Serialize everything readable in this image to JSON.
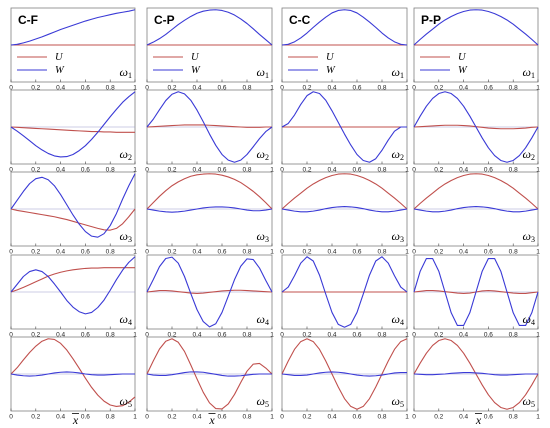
{
  "colors": {
    "U": "#c0504d",
    "W": "#3a3ad6",
    "zero": "#9999cc",
    "frame": "#7f7f7f"
  },
  "x_ticks": [
    "0",
    "0.2",
    "0.4",
    "0.6",
    "0.8",
    "1"
  ],
  "x_label": "x",
  "chart_data": {
    "type": "line",
    "layout": "grid of 5 rows (mode) by 4 columns (boundary condition)",
    "xlim": [
      0,
      1
    ],
    "ylim": [
      -1.05,
      1.05
    ],
    "columns": [
      "C-F",
      "C-P",
      "C-C",
      "P-P"
    ],
    "rows": [
      {
        "omega": "ω",
        "sub": "1"
      },
      {
        "omega": "ω",
        "sub": "2"
      },
      {
        "omega": "ω",
        "sub": "3"
      },
      {
        "omega": "ω",
        "sub": "4"
      },
      {
        "omega": "ω",
        "sub": "5"
      }
    ],
    "legend": {
      "placement": "lower-left of first-row panels",
      "entries": [
        "U",
        "W"
      ]
    },
    "x": [
      0,
      0.05,
      0.1,
      0.15,
      0.2,
      0.25,
      0.3,
      0.35,
      0.4,
      0.45,
      0.5,
      0.55,
      0.6,
      0.65,
      0.7,
      0.75,
      0.8,
      0.85,
      0.9,
      0.95,
      1
    ],
    "panels": [
      [
        {
          "U": [
            0,
            0,
            0,
            0,
            0,
            0,
            0,
            0,
            0,
            0,
            0,
            0,
            0,
            0,
            0,
            0,
            0,
            0,
            0,
            0,
            0
          ],
          "W": [
            0,
            0.02,
            0.06,
            0.11,
            0.17,
            0.23,
            0.3,
            0.37,
            0.44,
            0.5,
            0.56,
            0.62,
            0.68,
            0.73,
            0.78,
            0.82,
            0.86,
            0.9,
            0.93,
            0.96,
            1
          ]
        },
        {
          "U": [
            0,
            0,
            0,
            0,
            0,
            0,
            0,
            0,
            0,
            0,
            0,
            0,
            0,
            0,
            0,
            0,
            0,
            0,
            0,
            0,
            0
          ],
          "W": [
            0,
            0.08,
            0.18,
            0.3,
            0.44,
            0.58,
            0.7,
            0.81,
            0.9,
            0.96,
            0.99,
            1,
            0.98,
            0.93,
            0.85,
            0.74,
            0.61,
            0.46,
            0.3,
            0.15,
            0
          ]
        },
        {
          "U": [
            0,
            0,
            0,
            0,
            0,
            0,
            0,
            0,
            0,
            0,
            0,
            0,
            0,
            0,
            0,
            0,
            0,
            0,
            0,
            0,
            0
          ],
          "W": [
            0,
            0.02,
            0.09,
            0.2,
            0.34,
            0.5,
            0.65,
            0.79,
            0.91,
            0.98,
            1,
            0.98,
            0.91,
            0.79,
            0.65,
            0.5,
            0.34,
            0.2,
            0.09,
            0.02,
            0
          ]
        },
        {
          "U": [
            0,
            0,
            0,
            0,
            0,
            0,
            0,
            0,
            0,
            0,
            0,
            0,
            0,
            0,
            0,
            0,
            0,
            0,
            0,
            0,
            0
          ],
          "W": [
            0,
            0.16,
            0.31,
            0.45,
            0.59,
            0.71,
            0.81,
            0.89,
            0.95,
            0.99,
            1,
            0.99,
            0.95,
            0.89,
            0.81,
            0.71,
            0.59,
            0.45,
            0.31,
            0.16,
            0
          ]
        }
      ],
      [
        {
          "U": [
            0,
            -0.01,
            -0.02,
            -0.03,
            -0.04,
            -0.05,
            -0.06,
            -0.07,
            -0.08,
            -0.09,
            -0.1,
            -0.11,
            -0.12,
            -0.13,
            -0.13,
            -0.14,
            -0.14,
            -0.15,
            -0.15,
            -0.15,
            -0.15
          ],
          "W": [
            0,
            -0.12,
            -0.25,
            -0.39,
            -0.53,
            -0.65,
            -0.75,
            -0.82,
            -0.85,
            -0.84,
            -0.78,
            -0.67,
            -0.53,
            -0.35,
            -0.15,
            0.07,
            0.29,
            0.5,
            0.7,
            0.86,
            1
          ]
        },
        {
          "U": [
            0,
            0.01,
            0.02,
            0.03,
            0.04,
            0.05,
            0.06,
            0.06,
            0.06,
            0.06,
            0.05,
            0.04,
            0.03,
            0.02,
            0.01,
            0,
            -0.01,
            -0.01,
            -0.01,
            0,
            0
          ],
          "W": [
            0,
            0.22,
            0.49,
            0.75,
            0.93,
            1,
            0.94,
            0.76,
            0.48,
            0.15,
            -0.2,
            -0.52,
            -0.78,
            -0.94,
            -1,
            -0.94,
            -0.78,
            -0.56,
            -0.33,
            -0.13,
            0
          ]
        },
        {
          "U": [
            0,
            0,
            0,
            0,
            0,
            0,
            0,
            0,
            0,
            0,
            0,
            0,
            0,
            0,
            0,
            0,
            0,
            0,
            0,
            0,
            0
          ],
          "W": [
            0,
            0.1,
            0.34,
            0.64,
            0.89,
            1,
            0.95,
            0.76,
            0.46,
            0.13,
            -0.2,
            -0.51,
            -0.78,
            -0.95,
            -1,
            -0.9,
            -0.66,
            -0.37,
            -0.12,
            0,
            0
          ]
        },
        {
          "U": [
            0,
            0.01,
            0.02,
            0.03,
            0.04,
            0.05,
            0.05,
            0.05,
            0.04,
            0.03,
            0.01,
            -0.01,
            -0.03,
            -0.04,
            -0.05,
            -0.05,
            -0.05,
            -0.04,
            -0.03,
            -0.01,
            0
          ],
          "W": [
            0,
            0.31,
            0.59,
            0.81,
            0.95,
            1,
            0.95,
            0.81,
            0.59,
            0.31,
            0,
            -0.31,
            -0.59,
            -0.81,
            -0.95,
            -1,
            -0.95,
            -0.81,
            -0.59,
            -0.31,
            0
          ]
        }
      ],
      [
        {
          "U": [
            0,
            -0.04,
            -0.07,
            -0.1,
            -0.13,
            -0.16,
            -0.19,
            -0.22,
            -0.26,
            -0.3,
            -0.35,
            -0.4,
            -0.45,
            -0.5,
            -0.55,
            -0.59,
            -0.6,
            -0.55,
            -0.42,
            -0.22,
            0
          ],
          "W": [
            0,
            0.25,
            0.5,
            0.72,
            0.86,
            0.9,
            0.83,
            0.66,
            0.41,
            0.12,
            -0.17,
            -0.43,
            -0.64,
            -0.77,
            -0.8,
            -0.7,
            -0.47,
            -0.13,
            0.28,
            0.66,
            1
          ]
        },
        {
          "U": [
            0,
            0.18,
            0.36,
            0.52,
            0.66,
            0.77,
            0.86,
            0.93,
            0.97,
            0.99,
            1,
            0.99,
            0.96,
            0.91,
            0.84,
            0.75,
            0.63,
            0.5,
            0.35,
            0.18,
            0
          ],
          "W": [
            0,
            -0.03,
            -0.06,
            -0.08,
            -0.09,
            -0.08,
            -0.06,
            -0.03,
            0,
            0.03,
            0.05,
            0.06,
            0.06,
            0.05,
            0.03,
            0,
            -0.03,
            -0.05,
            -0.05,
            -0.03,
            0
          ]
        },
        {
          "U": [
            0,
            0.16,
            0.31,
            0.45,
            0.59,
            0.71,
            0.81,
            0.89,
            0.95,
            0.99,
            1,
            0.99,
            0.95,
            0.89,
            0.81,
            0.71,
            0.59,
            0.45,
            0.31,
            0.16,
            0
          ],
          "W": [
            0,
            -0.03,
            -0.06,
            -0.08,
            -0.08,
            -0.06,
            -0.03,
            0.01,
            0.04,
            0.06,
            0.07,
            0.06,
            0.04,
            0.01,
            -0.03,
            -0.06,
            -0.08,
            -0.08,
            -0.06,
            -0.03,
            0
          ]
        },
        {
          "U": [
            0,
            0.16,
            0.31,
            0.45,
            0.59,
            0.71,
            0.81,
            0.89,
            0.95,
            0.99,
            1,
            0.99,
            0.95,
            0.89,
            0.81,
            0.71,
            0.59,
            0.45,
            0.31,
            0.16,
            0
          ],
          "W": [
            0,
            -0.03,
            -0.06,
            -0.08,
            -0.08,
            -0.06,
            -0.03,
            0.01,
            0.04,
            0.06,
            0.07,
            0.06,
            0.04,
            0.01,
            -0.03,
            -0.06,
            -0.08,
            -0.08,
            -0.06,
            -0.03,
            0
          ]
        }
      ],
      [
        {
          "U": [
            0,
            0.06,
            0.13,
            0.21,
            0.29,
            0.37,
            0.45,
            0.51,
            0.56,
            0.6,
            0.63,
            0.65,
            0.67,
            0.68,
            0.68,
            0.69,
            0.69,
            0.69,
            0.69,
            0.69,
            0.69
          ],
          "W": [
            0,
            0.22,
            0.44,
            0.58,
            0.63,
            0.58,
            0.44,
            0.23,
            0,
            -0.24,
            -0.43,
            -0.56,
            -0.62,
            -0.58,
            -0.44,
            -0.23,
            0.05,
            0.35,
            0.62,
            0.84,
            1
          ]
        },
        {
          "U": [
            0,
            0.02,
            0.04,
            0.04,
            0.03,
            0.01,
            -0.01,
            -0.03,
            -0.04,
            -0.03,
            -0.01,
            0.01,
            0.03,
            0.04,
            0.05,
            0.05,
            0.04,
            0.03,
            0.02,
            0.01,
            0
          ],
          "W": [
            0,
            0.35,
            0.72,
            0.95,
            0.99,
            0.82,
            0.44,
            -0.04,
            -0.5,
            -0.84,
            -0.99,
            -0.9,
            -0.58,
            -0.12,
            0.35,
            0.73,
            0.94,
            0.92,
            0.68,
            0.33,
            0
          ]
        },
        {
          "U": [
            0,
            0,
            0,
            0,
            0,
            0,
            0,
            0,
            0,
            0,
            0,
            0,
            0,
            0,
            0,
            0,
            0,
            0,
            0,
            0,
            0
          ],
          "W": [
            0,
            0.14,
            0.46,
            0.82,
            1,
            0.88,
            0.48,
            -0.06,
            -0.58,
            -0.92,
            -1,
            -0.92,
            -0.58,
            -0.06,
            0.48,
            0.88,
            1,
            0.82,
            0.46,
            0.14,
            0
          ]
        },
        {
          "U": [
            0,
            0.02,
            0.04,
            0.04,
            0.03,
            0.01,
            -0.01,
            -0.03,
            -0.04,
            -0.03,
            0,
            0.03,
            0.04,
            0.03,
            0.01,
            -0.01,
            -0.03,
            -0.04,
            -0.04,
            -0.02,
            0
          ],
          "W": [
            0,
            0.59,
            0.95,
            0.95,
            0.59,
            0,
            -0.59,
            -0.95,
            -0.95,
            -0.59,
            0,
            0.59,
            0.95,
            0.95,
            0.59,
            0,
            -0.59,
            -0.95,
            -0.95,
            -0.59,
            0
          ]
        }
      ],
      [
        {
          "U": [
            0,
            0.18,
            0.4,
            0.61,
            0.79,
            0.93,
            1,
            0.98,
            0.87,
            0.68,
            0.43,
            0.16,
            -0.12,
            -0.38,
            -0.6,
            -0.77,
            -0.88,
            -0.92,
            -0.9,
            -0.8,
            -0.65
          ],
          "W": [
            0,
            -0.03,
            -0.05,
            -0.06,
            -0.05,
            -0.03,
            0,
            0.03,
            0.05,
            0.06,
            0.05,
            0.03,
            0,
            -0.02,
            -0.03,
            -0.03,
            -0.02,
            -0.01,
            0,
            0,
            0
          ]
        },
        {
          "U": [
            0,
            0.37,
            0.71,
            0.93,
            1,
            0.9,
            0.64,
            0.26,
            -0.14,
            -0.52,
            -0.82,
            -0.98,
            -0.99,
            -0.85,
            -0.58,
            -0.24,
            0.08,
            0.28,
            0.3,
            0.17,
            0
          ],
          "W": [
            0,
            -0.03,
            -0.04,
            -0.04,
            -0.02,
            0.01,
            0.04,
            0.06,
            0.06,
            0.05,
            0.02,
            -0.01,
            -0.04,
            -0.06,
            -0.06,
            -0.05,
            -0.03,
            -0.01,
            0,
            0,
            0
          ]
        },
        {
          "U": [
            0,
            0.37,
            0.7,
            0.92,
            1,
            0.92,
            0.7,
            0.37,
            0,
            -0.37,
            -0.7,
            -0.92,
            -1,
            -0.92,
            -0.7,
            -0.37,
            0,
            0.37,
            0.7,
            0.92,
            1
          ],
          "W": [
            0,
            -0.02,
            -0.04,
            -0.04,
            -0.03,
            0,
            0.03,
            0.05,
            0.06,
            0.05,
            0.03,
            0,
            -0.03,
            -0.05,
            -0.06,
            -0.05,
            -0.03,
            0,
            0.03,
            0.04,
            0.04
          ]
        },
        {
          "U": [
            0,
            0.31,
            0.59,
            0.81,
            0.95,
            1,
            0.95,
            0.81,
            0.59,
            0.31,
            0,
            -0.31,
            -0.59,
            -0.81,
            -0.95,
            -1,
            -0.95,
            -0.81,
            -0.59,
            -0.31,
            0
          ],
          "W": [
            0,
            -0.01,
            -0.02,
            -0.02,
            -0.01,
            0,
            0.02,
            0.03,
            0.04,
            0.04,
            0.03,
            0.02,
            0,
            -0.02,
            -0.03,
            -0.03,
            -0.02,
            -0.01,
            0,
            0,
            0
          ]
        }
      ]
    ]
  }
}
